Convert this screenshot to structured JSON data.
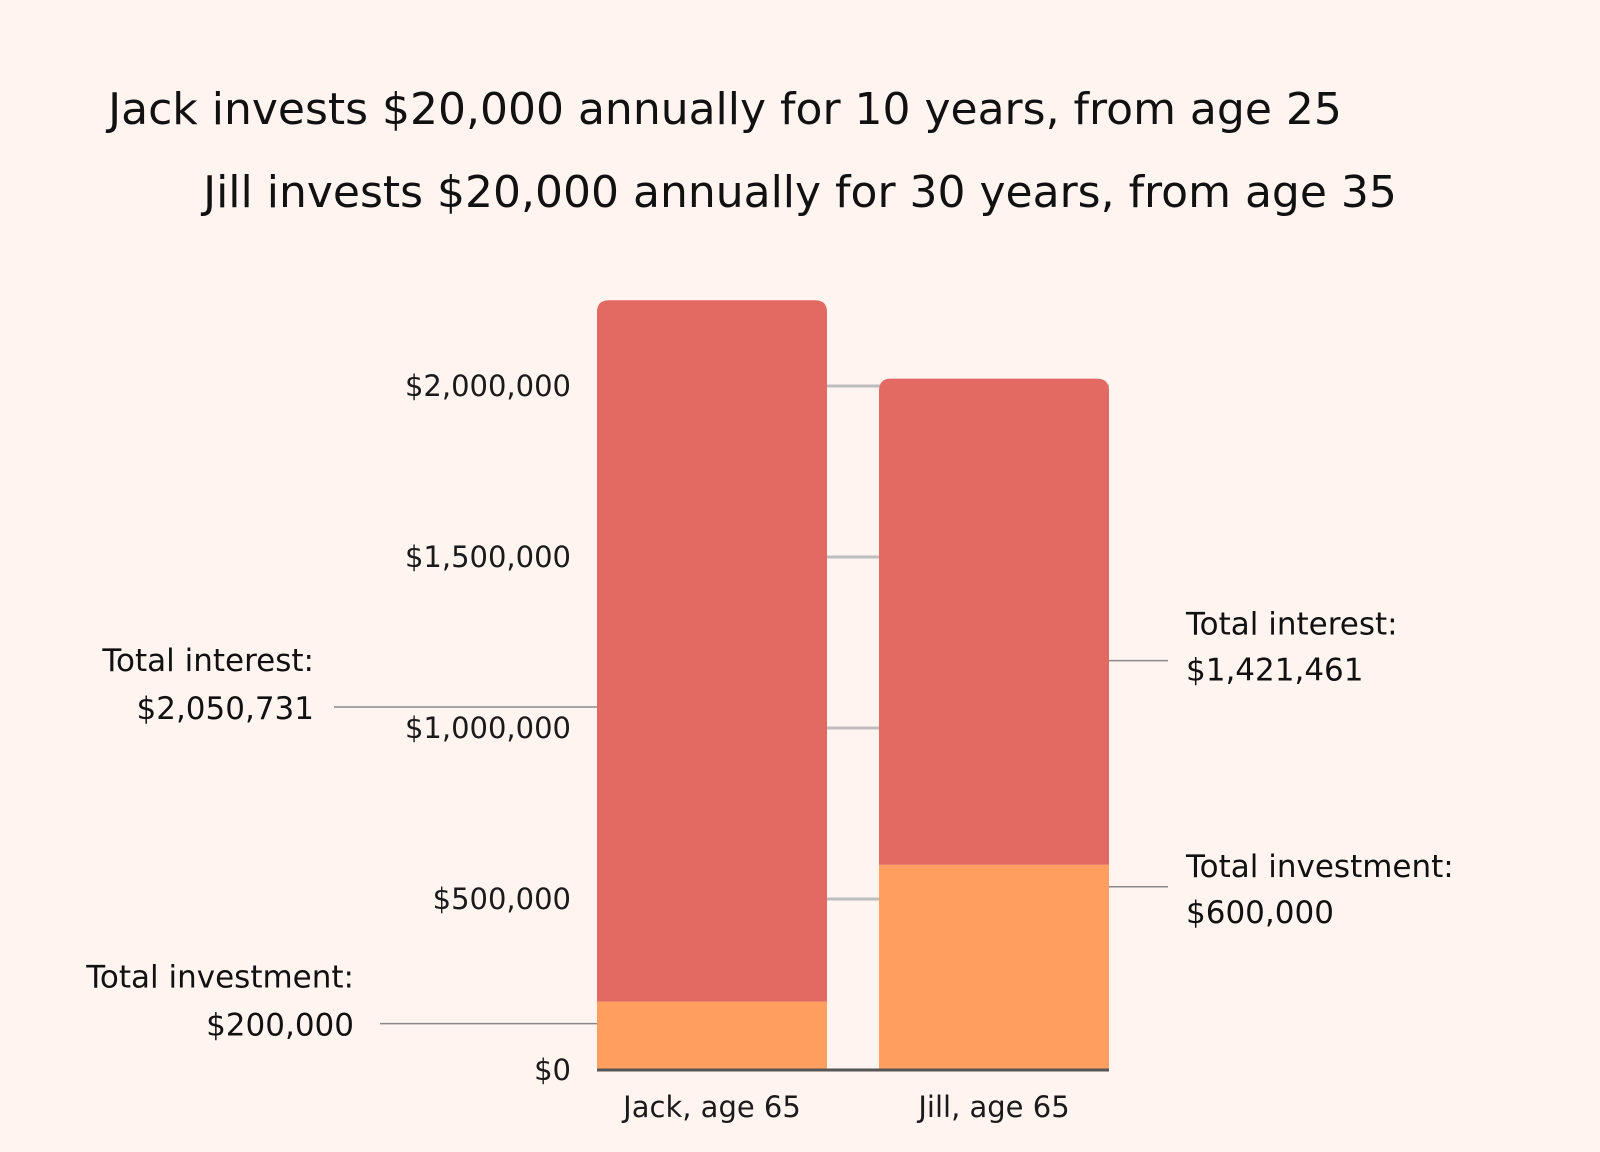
{
  "titles": {
    "line1": "Jack invests $20,000 annually for 10 years, from age 25",
    "line2": "Jill invests $20,000 annually for 30 years, from age 35"
  },
  "colors": {
    "background": "#fff4ef",
    "interest": "#e36a62",
    "investment": "#ff9e5e",
    "gridline": "#bdbdbd",
    "leader": "#8a8a8a"
  },
  "chart_data": {
    "type": "bar",
    "stacked": true,
    "categories": [
      "Jack, age 65",
      "Jill, age 65"
    ],
    "series": [
      {
        "name": "Total investment",
        "values": [
          200000,
          600000
        ]
      },
      {
        "name": "Total interest",
        "values": [
          2050731,
          1421461
        ]
      }
    ],
    "yticks": [
      {
        "value": 0,
        "label": "$0"
      },
      {
        "value": 500000,
        "label": "$500,000"
      },
      {
        "value": 1000000,
        "label": "$1,000,000"
      },
      {
        "value": 1500000,
        "label": "$1,500,000"
      },
      {
        "value": 2000000,
        "label": "$2,000,000"
      }
    ],
    "ylim": [
      0,
      2250731
    ],
    "grid": true,
    "annotations": [
      {
        "category": 0,
        "series": 1,
        "side": "left",
        "label": "Total interest:",
        "value_label": "$2,050,731"
      },
      {
        "category": 0,
        "series": 0,
        "side": "left",
        "label": "Total investment:",
        "value_label": "$200,000"
      },
      {
        "category": 1,
        "series": 1,
        "side": "right",
        "label": "Total interest:",
        "value_label": "$1,421,461"
      },
      {
        "category": 1,
        "series": 0,
        "side": "right",
        "label": "Total investment:",
        "value_label": "$600,000"
      }
    ]
  }
}
